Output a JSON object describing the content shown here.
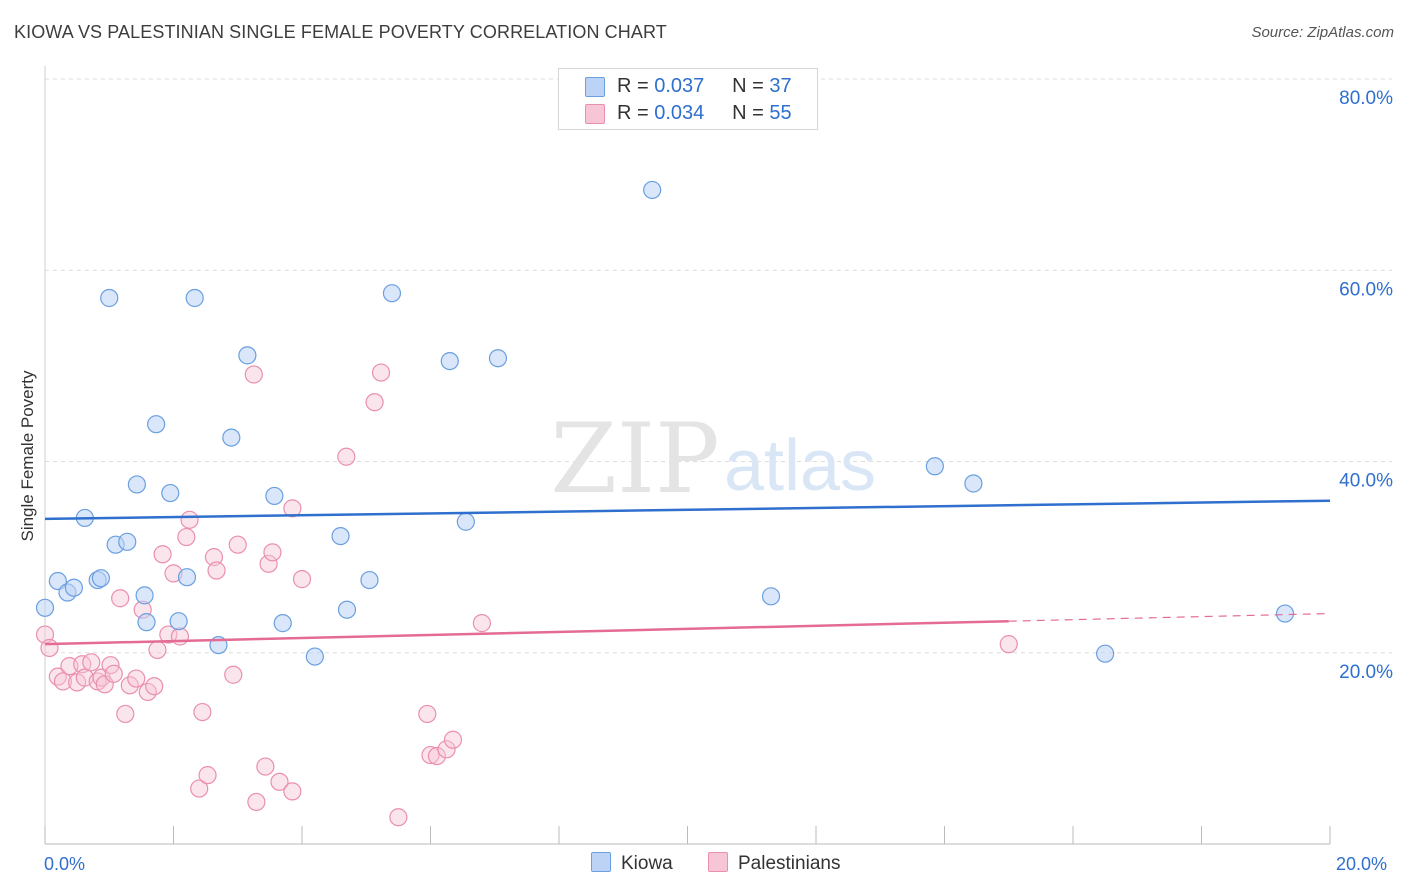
{
  "title": "KIOWA VS PALESTINIAN SINGLE FEMALE POVERTY CORRELATION CHART",
  "source": "Source: ZipAtlas.com",
  "watermark": {
    "zip": "ZIP",
    "atlas": "atlas"
  },
  "legend": {
    "kiowa": {
      "r_label": "R =",
      "r_value": "0.037",
      "n_label": "N =",
      "n_value": "37"
    },
    "palestinians": {
      "r_label": "R =",
      "r_value": "0.034",
      "n_label": "N =",
      "n_value": "55"
    }
  },
  "bottom_legend": {
    "kiowa": "Kiowa",
    "palestinians": "Palestinians"
  },
  "x_axis": {
    "min_label": "0.0%",
    "max_label": "20.0%"
  },
  "chart_data": {
    "type": "scatter",
    "title": "KIOWA VS PALESTINIAN SINGLE FEMALE POVERTY CORRELATION CHART",
    "xlabel": "",
    "ylabel": "Single Female Poverty",
    "xlim": [
      0,
      20
    ],
    "ylim": [
      0,
      80
    ],
    "x_ticks": [
      "0.0%",
      "20.0%"
    ],
    "y_ticks": [
      "20.0%",
      "40.0%",
      "60.0%",
      "80.0%"
    ],
    "y_tick_values": [
      20,
      40,
      60,
      80
    ],
    "grid": true,
    "legend_position": "top-center",
    "colors": {
      "kiowa": "#6a9fe0",
      "kiowa_fill": "#bcd3f5",
      "kiowa_line": "#2f6fce",
      "palestinians": "#ea8fae",
      "palestinians_fill": "#f7c6d6",
      "palestinians_line": "#e36b94"
    },
    "series": [
      {
        "name": "Kiowa",
        "points": [
          [
            0.0,
            24.7
          ],
          [
            0.2,
            27.5
          ],
          [
            0.35,
            26.3
          ],
          [
            0.45,
            26.8
          ],
          [
            0.62,
            34.1
          ],
          [
            0.82,
            27.6
          ],
          [
            0.87,
            27.8
          ],
          [
            1.0,
            57.1
          ],
          [
            1.1,
            31.3
          ],
          [
            1.28,
            31.6
          ],
          [
            1.43,
            37.6
          ],
          [
            1.55,
            26.0
          ],
          [
            1.58,
            23.2
          ],
          [
            1.73,
            43.9
          ],
          [
            1.95,
            36.7
          ],
          [
            2.08,
            23.3
          ],
          [
            2.21,
            27.9
          ],
          [
            2.33,
            57.1
          ],
          [
            2.7,
            20.8
          ],
          [
            2.9,
            42.5
          ],
          [
            3.15,
            51.1
          ],
          [
            3.57,
            36.4
          ],
          [
            3.7,
            23.1
          ],
          [
            4.2,
            19.6
          ],
          [
            4.6,
            32.2
          ],
          [
            4.7,
            24.5
          ],
          [
            5.05,
            27.6
          ],
          [
            5.4,
            57.6
          ],
          [
            6.3,
            50.5
          ],
          [
            6.55,
            33.7
          ],
          [
            7.05,
            50.8
          ],
          [
            9.45,
            68.4
          ],
          [
            11.3,
            25.9
          ],
          [
            13.85,
            39.5
          ],
          [
            14.45,
            37.7
          ],
          [
            16.5,
            19.9
          ],
          [
            19.3,
            24.1
          ]
        ],
        "trend": {
          "x0": 0.0,
          "y0": 34.0,
          "x1": 20.0,
          "y1": 35.9
        }
      },
      {
        "name": "Palestinians",
        "points": [
          [
            0.0,
            21.9
          ],
          [
            0.07,
            20.5
          ],
          [
            0.2,
            17.5
          ],
          [
            0.28,
            17.0
          ],
          [
            0.38,
            18.6
          ],
          [
            0.5,
            16.9
          ],
          [
            0.58,
            18.8
          ],
          [
            0.62,
            17.4
          ],
          [
            0.72,
            19.0
          ],
          [
            0.82,
            17.0
          ],
          [
            0.88,
            17.4
          ],
          [
            0.93,
            16.7
          ],
          [
            1.02,
            18.7
          ],
          [
            1.07,
            17.8
          ],
          [
            1.17,
            25.7
          ],
          [
            1.25,
            13.6
          ],
          [
            1.32,
            16.6
          ],
          [
            1.42,
            17.3
          ],
          [
            1.52,
            24.5
          ],
          [
            1.6,
            15.9
          ],
          [
            1.7,
            16.5
          ],
          [
            1.75,
            20.3
          ],
          [
            1.83,
            30.3
          ],
          [
            1.92,
            21.9
          ],
          [
            2.0,
            28.3
          ],
          [
            2.1,
            21.7
          ],
          [
            2.2,
            32.1
          ],
          [
            2.25,
            33.9
          ],
          [
            2.4,
            5.8
          ],
          [
            2.45,
            13.8
          ],
          [
            2.53,
            7.2
          ],
          [
            2.63,
            30.0
          ],
          [
            2.67,
            28.6
          ],
          [
            2.93,
            17.7
          ],
          [
            3.0,
            31.3
          ],
          [
            3.25,
            49.1
          ],
          [
            3.29,
            4.4
          ],
          [
            3.43,
            8.1
          ],
          [
            3.48,
            29.3
          ],
          [
            3.54,
            30.5
          ],
          [
            3.65,
            6.5
          ],
          [
            3.85,
            5.5
          ],
          [
            3.85,
            35.1
          ],
          [
            4.0,
            27.7
          ],
          [
            4.69,
            40.5
          ],
          [
            5.13,
            46.2
          ],
          [
            5.23,
            49.3
          ],
          [
            5.5,
            2.8
          ],
          [
            5.95,
            13.6
          ],
          [
            6.0,
            9.3
          ],
          [
            6.1,
            9.2
          ],
          [
            6.25,
            9.9
          ],
          [
            6.35,
            10.9
          ],
          [
            6.8,
            23.1
          ],
          [
            15.0,
            20.9
          ]
        ],
        "trend": {
          "x0": 0.0,
          "y0": 20.9,
          "x1": 15.0,
          "y1": 23.3
        },
        "trend_dashed": {
          "x0": 15.0,
          "y0": 23.3,
          "x1": 20.0,
          "y1": 24.1
        }
      }
    ]
  }
}
